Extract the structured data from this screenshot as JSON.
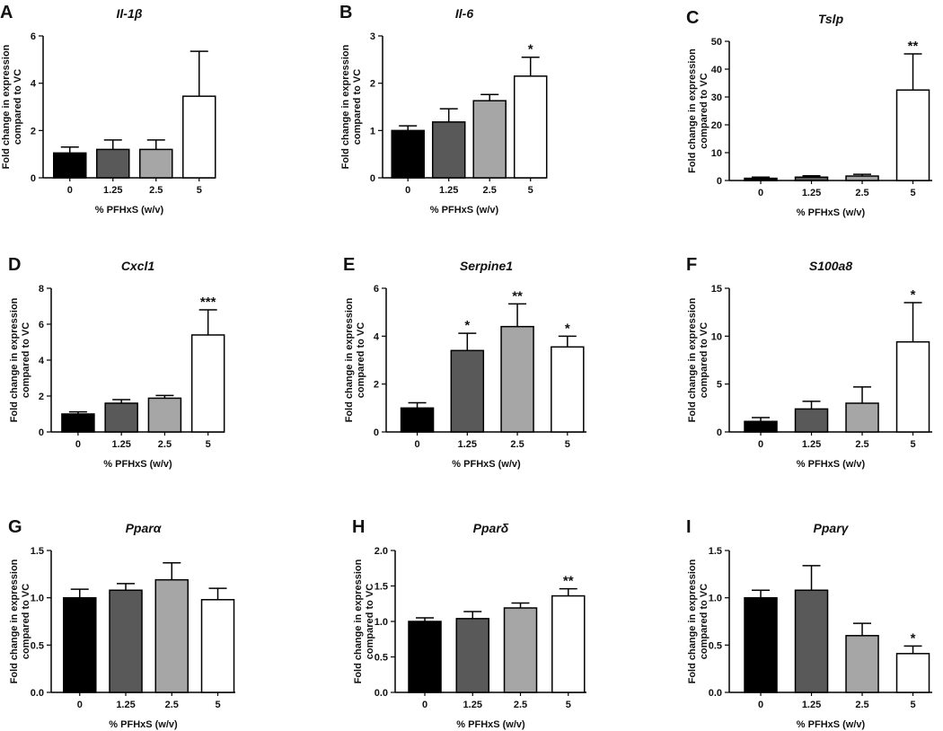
{
  "chart_data": [
    {
      "type": "bar",
      "letter": "A",
      "title": "Il-1β",
      "categories": [
        "0",
        "1.25",
        "2.5",
        "5"
      ],
      "values": [
        1.05,
        1.2,
        1.2,
        3.45
      ],
      "errors": [
        0.25,
        0.4,
        0.4,
        1.9
      ],
      "significance": [
        "",
        "",
        "",
        ""
      ],
      "ylim": [
        0,
        6
      ],
      "yticks": [
        "0",
        "2",
        "4",
        "6"
      ],
      "xlabel": "%  PFHxS (w/v)",
      "ylabel": [
        "Fold  change in expression",
        "compared to VC"
      ],
      "bar_colors": [
        "#000000",
        "#595959",
        "#a6a6a6",
        "#ffffff"
      ]
    },
    {
      "type": "bar",
      "letter": "B",
      "title": "Il-6",
      "categories": [
        "0",
        "1.25",
        "2.5",
        "5"
      ],
      "values": [
        1.0,
        1.18,
        1.63,
        2.15
      ],
      "errors": [
        0.1,
        0.28,
        0.13,
        0.4
      ],
      "significance": [
        "",
        "",
        "",
        "*"
      ],
      "ylim": [
        0,
        3
      ],
      "yticks": [
        "0",
        "1",
        "2",
        "3"
      ],
      "xlabel": "%  PFHxS (w/v)",
      "ylabel": [
        "Fold  change in expression",
        "compared to VC"
      ],
      "bar_colors": [
        "#000000",
        "#595959",
        "#a6a6a6",
        "#ffffff"
      ]
    },
    {
      "type": "bar",
      "letter": "C",
      "title": "Tslp",
      "categories": [
        "0",
        "1.25",
        "2.5",
        "5"
      ],
      "values": [
        0.8,
        1.2,
        1.6,
        32.5
      ],
      "errors": [
        0.4,
        0.5,
        0.6,
        13
      ],
      "significance": [
        "",
        "",
        "",
        "**"
      ],
      "ylim": [
        0,
        50
      ],
      "yticks": [
        "0",
        "10",
        "20",
        "30",
        "40",
        "50"
      ],
      "xlabel": "%  PFHxS (w/v)",
      "ylabel": [
        "Fold  change in expression",
        "compared to VC"
      ],
      "bar_colors": [
        "#000000",
        "#595959",
        "#a6a6a6",
        "#ffffff"
      ]
    },
    {
      "type": "bar",
      "letter": "D",
      "title": "Cxcl1",
      "categories": [
        "0",
        "1.25",
        "2.5",
        "5"
      ],
      "values": [
        1.0,
        1.6,
        1.88,
        5.4
      ],
      "errors": [
        0.12,
        0.2,
        0.15,
        1.4
      ],
      "significance": [
        "",
        "",
        "",
        "***"
      ],
      "ylim": [
        0,
        8
      ],
      "yticks": [
        "0",
        "2",
        "4",
        "6",
        "8"
      ],
      "xlabel": "%  PFHxS (w/v)",
      "ylabel": [
        "Fold  change in expression",
        "compared to VC"
      ],
      "bar_colors": [
        "#000000",
        "#595959",
        "#a6a6a6",
        "#ffffff"
      ]
    },
    {
      "type": "bar",
      "letter": "E",
      "title": "Serpine1",
      "categories": [
        "0",
        "1.25",
        "2.5",
        "5"
      ],
      "values": [
        1.0,
        3.4,
        4.4,
        3.55
      ],
      "errors": [
        0.22,
        0.72,
        0.95,
        0.45
      ],
      "significance": [
        "",
        "*",
        "**",
        "*"
      ],
      "ylim": [
        0,
        6
      ],
      "yticks": [
        "0",
        "2",
        "4",
        "6"
      ],
      "xlabel": "%  PFHxS (w/v)",
      "ylabel": [
        "Fold  change in expression",
        "compared to VC"
      ],
      "bar_colors": [
        "#000000",
        "#595959",
        "#a6a6a6",
        "#ffffff"
      ]
    },
    {
      "type": "bar",
      "letter": "F",
      "title": "S100a8",
      "categories": [
        "0",
        "1.25",
        "2.5",
        "5"
      ],
      "values": [
        1.1,
        2.4,
        3.0,
        9.4
      ],
      "errors": [
        0.4,
        0.8,
        1.7,
        4.1
      ],
      "significance": [
        "",
        "",
        "",
        "*"
      ],
      "ylim": [
        0,
        15
      ],
      "yticks": [
        "0",
        "5",
        "10",
        "15"
      ],
      "xlabel": "%  PFHxS (w/v)",
      "ylabel": [
        "Fold  change in expression",
        "compared to VC"
      ],
      "bar_colors": [
        "#000000",
        "#595959",
        "#a6a6a6",
        "#ffffff"
      ]
    },
    {
      "type": "bar",
      "letter": "G",
      "title": "Pparα",
      "categories": [
        "0",
        "1.25",
        "2.5",
        "5"
      ],
      "values": [
        1.0,
        1.08,
        1.19,
        0.98
      ],
      "errors": [
        0.09,
        0.07,
        0.18,
        0.12
      ],
      "significance": [
        "",
        "",
        "",
        ""
      ],
      "ylim": [
        0,
        1.5
      ],
      "yticks": [
        "0.0",
        "0.5",
        "1.0",
        "1.5"
      ],
      "xlabel": "%  PFHxS (w/v)",
      "ylabel": [
        "Fold  change in expression",
        "compared to VC"
      ],
      "bar_colors": [
        "#000000",
        "#595959",
        "#a6a6a6",
        "#ffffff"
      ]
    },
    {
      "type": "bar",
      "letter": "H",
      "title": "Pparδ",
      "categories": [
        "0",
        "1.25",
        "2.5",
        "5"
      ],
      "values": [
        1.0,
        1.04,
        1.19,
        1.36
      ],
      "errors": [
        0.05,
        0.1,
        0.07,
        0.1
      ],
      "significance": [
        "",
        "",
        "",
        "**"
      ],
      "ylim": [
        0,
        2.0
      ],
      "yticks": [
        "0.0",
        "0.5",
        "1.0",
        "1.5",
        "2.0"
      ],
      "xlabel": "%  PFHxS (w/v)",
      "ylabel": [
        "Fold  change in expression",
        "compared to VC"
      ],
      "bar_colors": [
        "#000000",
        "#595959",
        "#a6a6a6",
        "#ffffff"
      ]
    },
    {
      "type": "bar",
      "letter": "I",
      "title": "Pparγ",
      "categories": [
        "0",
        "1.25",
        "2.5",
        "5"
      ],
      "values": [
        1.0,
        1.08,
        0.6,
        0.41
      ],
      "errors": [
        0.08,
        0.26,
        0.13,
        0.08
      ],
      "significance": [
        "",
        "",
        "",
        "*"
      ],
      "ylim": [
        0,
        1.5
      ],
      "yticks": [
        "0.0",
        "0.5",
        "1.0",
        "1.5"
      ],
      "xlabel": "%  PFHxS (w/v)",
      "ylabel": [
        "Fold  change in expression",
        "compared to VC"
      ],
      "bar_colors": [
        "#000000",
        "#595959",
        "#a6a6a6",
        "#ffffff"
      ]
    }
  ]
}
